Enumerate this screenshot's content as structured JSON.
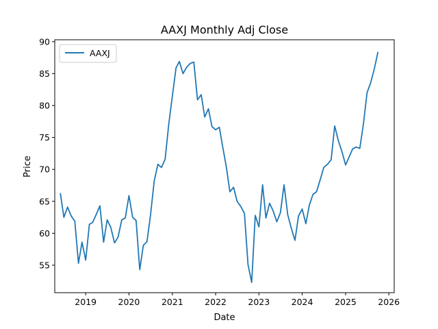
{
  "chart_data": {
    "type": "line",
    "title": "AAXJ Monthly Adj Close",
    "xlabel": "Date",
    "ylabel": "Price",
    "x_ticks": [
      "2019",
      "2020",
      "2021",
      "2022",
      "2023",
      "2024",
      "2025",
      "2026"
    ],
    "y_ticks": [
      "55",
      "60",
      "65",
      "70",
      "75",
      "80",
      "85",
      "90"
    ],
    "xlim": [
      "2018-04-15",
      "2026-02-15"
    ],
    "ylim": [
      50.7,
      90.3
    ],
    "grid": false,
    "legend_position": "top-left",
    "series": [
      {
        "name": "AAXJ",
        "color": "#1f77b4",
        "x": [
          "2018-06-01",
          "2018-07-01",
          "2018-08-01",
          "2018-09-01",
          "2018-10-01",
          "2018-11-01",
          "2018-12-01",
          "2019-01-01",
          "2019-02-01",
          "2019-03-01",
          "2019-04-01",
          "2019-05-01",
          "2019-06-01",
          "2019-07-01",
          "2019-08-01",
          "2019-09-01",
          "2019-10-01",
          "2019-11-01",
          "2019-12-01",
          "2020-01-01",
          "2020-02-01",
          "2020-03-01",
          "2020-04-01",
          "2020-05-01",
          "2020-06-01",
          "2020-07-01",
          "2020-08-01",
          "2020-09-01",
          "2020-10-01",
          "2020-11-01",
          "2020-12-01",
          "2021-01-01",
          "2021-02-01",
          "2021-03-01",
          "2021-04-01",
          "2021-05-01",
          "2021-06-01",
          "2021-07-01",
          "2021-08-01",
          "2021-09-01",
          "2021-10-01",
          "2021-11-01",
          "2021-12-01",
          "2022-01-01",
          "2022-02-01",
          "2022-03-01",
          "2022-04-01",
          "2022-05-01",
          "2022-06-01",
          "2022-07-01",
          "2022-08-01",
          "2022-09-01",
          "2022-10-01",
          "2022-11-01",
          "2022-12-01",
          "2023-01-01",
          "2023-02-01",
          "2023-03-01",
          "2023-04-01",
          "2023-05-01",
          "2023-06-01",
          "2023-07-01",
          "2023-08-01",
          "2023-09-01",
          "2023-10-01",
          "2023-11-01",
          "2023-12-01",
          "2024-01-01",
          "2024-02-01",
          "2024-03-01",
          "2024-04-01",
          "2024-05-01",
          "2024-06-01",
          "2024-07-01",
          "2024-08-01",
          "2024-09-01",
          "2024-10-01",
          "2024-11-01",
          "2024-12-01",
          "2025-01-01",
          "2025-02-01",
          "2025-03-01",
          "2025-04-01",
          "2025-05-01",
          "2025-06-01",
          "2025-07-01",
          "2025-08-01",
          "2025-09-01",
          "2025-10-01"
        ],
        "values": [
          66.3,
          62.5,
          64.1,
          62.7,
          61.9,
          55.3,
          58.6,
          55.8,
          61.4,
          61.7,
          63.0,
          64.3,
          58.6,
          62.1,
          60.9,
          58.5,
          59.4,
          62.1,
          62.4,
          65.9,
          62.5,
          62.0,
          54.3,
          58.1,
          58.7,
          62.9,
          68.2,
          70.8,
          70.3,
          71.6,
          77.0,
          81.5,
          85.9,
          86.9,
          85.0,
          86.0,
          86.6,
          86.8,
          80.9,
          81.7,
          78.2,
          79.5,
          76.7,
          76.2,
          76.6,
          73.6,
          70.4,
          66.5,
          67.2,
          65.0,
          64.2,
          63.1,
          55.1,
          52.3,
          62.8,
          61.0,
          67.6,
          62.4,
          64.7,
          63.5,
          61.8,
          63.2,
          67.6,
          62.9,
          60.8,
          58.9,
          62.7,
          63.8,
          61.5,
          64.4,
          66.1,
          66.5,
          68.4,
          70.3,
          70.8,
          71.5,
          76.8,
          74.5,
          72.8,
          70.7,
          72.0,
          73.2,
          73.5,
          73.3,
          77.2,
          82.0,
          83.6,
          85.8,
          88.4
        ]
      }
    ]
  }
}
